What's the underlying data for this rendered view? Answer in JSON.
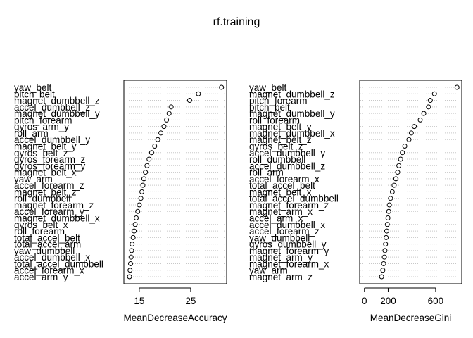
{
  "chart_data": {
    "title": "rf.training",
    "panels": [
      {
        "type": "scatter",
        "xlabel": "MeanDecreaseAccuracy",
        "xlim": [
          12,
          32
        ],
        "xticks": [
          15,
          25
        ],
        "grid": true,
        "categories": [
          "yaw_belt",
          "pitch_belt",
          "magnet_dumbbell_z",
          "accel_dumbbell_z",
          "magnet_dumbbell_y",
          "pitch_forearm",
          "gyros_arm_y",
          "roll_arm",
          "accel_dumbbell_y",
          "magnet_belt_y",
          "gyros_belt_z",
          "gyros_forearm_z",
          "gyros_forearm_y",
          "magnet_belt_x",
          "yaw_arm",
          "accel_forearm_z",
          "magnet_belt_z",
          "roll_dumbbell",
          "magnet_forearm_z",
          "accel_forearm_y",
          "magnet_dumbbell_x",
          "gyros_belt_x",
          "roll_forearm",
          "total_accel_belt",
          "total_accel_arm",
          "yaw_dumbbell",
          "accel_dumbbell_x",
          "total_accel_dumbbell",
          "accel_forearm_x",
          "accel_arm_y"
        ],
        "values": [
          31.0,
          26.5,
          24.8,
          21.2,
          20.8,
          20.3,
          19.8,
          19.2,
          18.6,
          18.0,
          17.4,
          16.9,
          16.5,
          16.2,
          15.9,
          15.7,
          15.5,
          15.3,
          15.0,
          14.7,
          14.4,
          14.2,
          14.0,
          13.8,
          13.6,
          13.5,
          13.4,
          13.3,
          13.2,
          13.1
        ]
      },
      {
        "type": "scatter",
        "xlabel": "MeanDecreaseGini",
        "xlim": [
          -40,
          820
        ],
        "xticks": [
          0,
          200,
          600
        ],
        "grid": true,
        "categories": [
          "yaw_belt",
          "magnet_dumbbell_z",
          "pitch_forearm",
          "pitch_belt",
          "magnet_dumbbell_y",
          "roll_forearm",
          "magnet_belt_y",
          "magnet_dumbbell_x",
          "magnet_belt_z",
          "gyros_belt_z",
          "accel_dumbbell_y",
          "roll_dumbbell",
          "accel_dumbbell_z",
          "roll_arm",
          "accel_forearm_x",
          "total_accel_belt",
          "magnet_belt_x",
          "total_accel_dumbbell",
          "magnet_forearm_z",
          "magnet_arm_x",
          "accel_arm_x",
          "accel_dumbbell_x",
          "accel_forearm_z",
          "yaw_dumbbell",
          "gyros_dumbbell_y",
          "magnet_forearm_y",
          "magnet_arm_y",
          "magnet_forearm_x",
          "yaw_arm",
          "magnet_arm_z"
        ],
        "values": [
          780,
          590,
          555,
          540,
          500,
          470,
          420,
          395,
          375,
          340,
          320,
          305,
          290,
          280,
          265,
          250,
          235,
          220,
          210,
          205,
          198,
          193,
          188,
          183,
          178,
          173,
          168,
          162,
          155,
          145
        ]
      }
    ]
  }
}
